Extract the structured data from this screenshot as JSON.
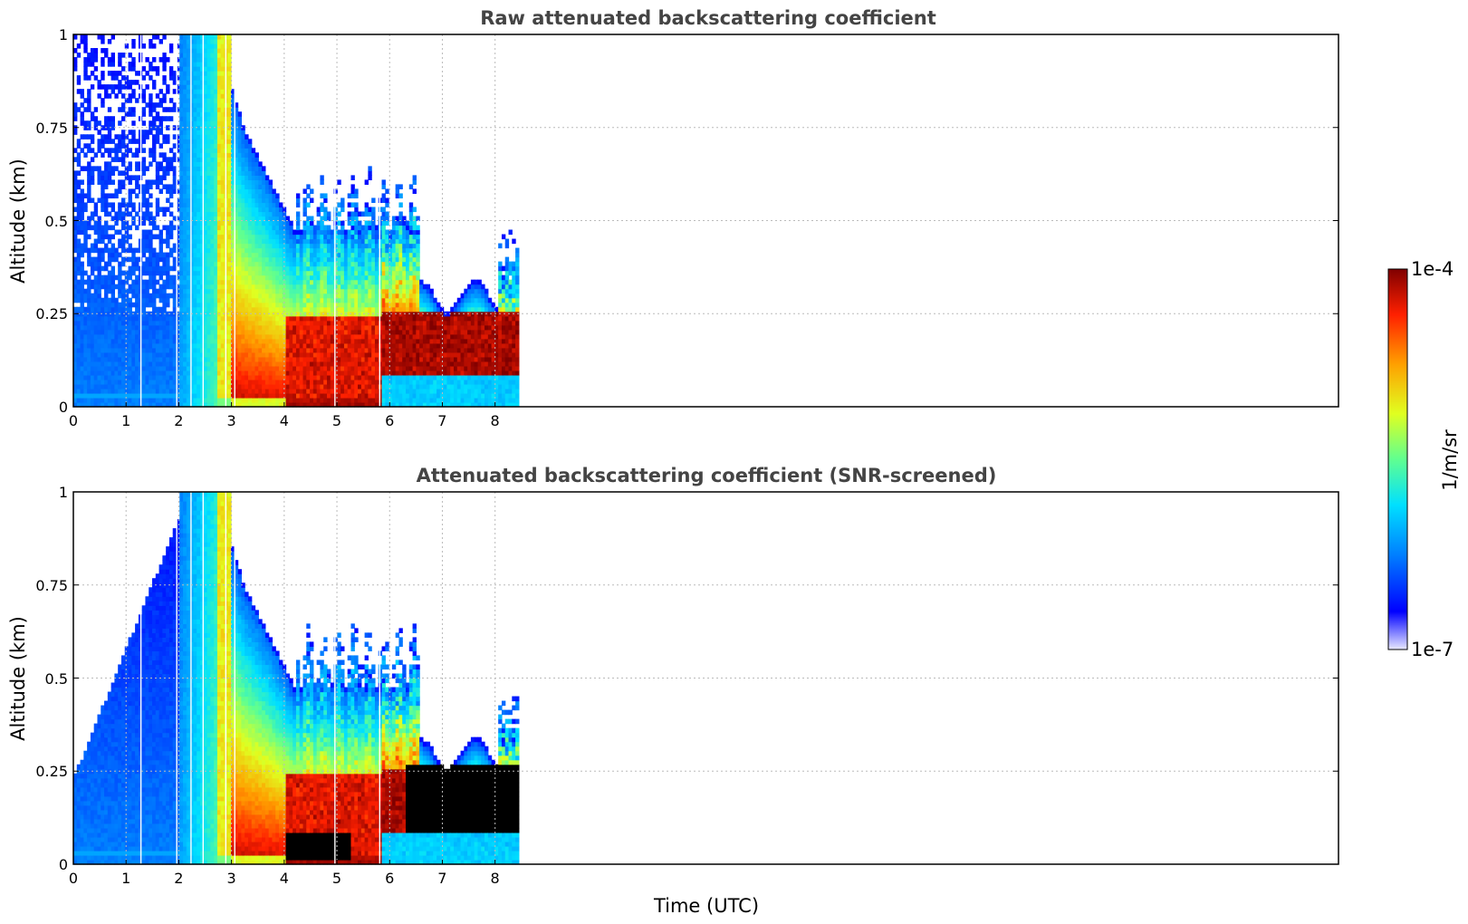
{
  "chart_data": [
    {
      "type": "heatmap",
      "title": "Raw attenuated backscattering coefficient",
      "xlabel": "",
      "ylabel": "Altitude (km)",
      "xlim": [
        0,
        24
      ],
      "ylim": [
        0,
        1
      ],
      "x_ticks": [
        "0",
        "1",
        "2",
        "3",
        "4",
        "5",
        "6",
        "7",
        "8"
      ],
      "y_ticks": [
        "0",
        "0.25",
        "0.5",
        "0.75",
        "1"
      ],
      "data_end_hour": 8.45,
      "grid": true,
      "colorbar": {
        "label": "1/m/sr",
        "min_label": "1e-7",
        "max_label": "1e-4",
        "scale": "log",
        "colormap": "jet"
      }
    },
    {
      "type": "heatmap",
      "title": "Attenuated backscattering coefficient (SNR-screened)",
      "xlabel": "Time (UTC)",
      "ylabel": "Altitude (km)",
      "xlim": [
        0,
        24
      ],
      "ylim": [
        0,
        1
      ],
      "x_ticks": [
        "0",
        "1",
        "2",
        "3",
        "4",
        "5",
        "6",
        "7",
        "8"
      ],
      "y_ticks": [
        "0",
        "0.25",
        "0.5",
        "0.75",
        "1"
      ],
      "data_end_hour": 8.45,
      "grid": true,
      "colorbar": {
        "label": "1/m/sr",
        "min_label": "1e-7",
        "max_label": "1e-4",
        "scale": "log",
        "colormap": "jet"
      }
    }
  ],
  "colors": {
    "title": "#444444",
    "grid": "#bbbbbb",
    "saturated": "#000000"
  }
}
